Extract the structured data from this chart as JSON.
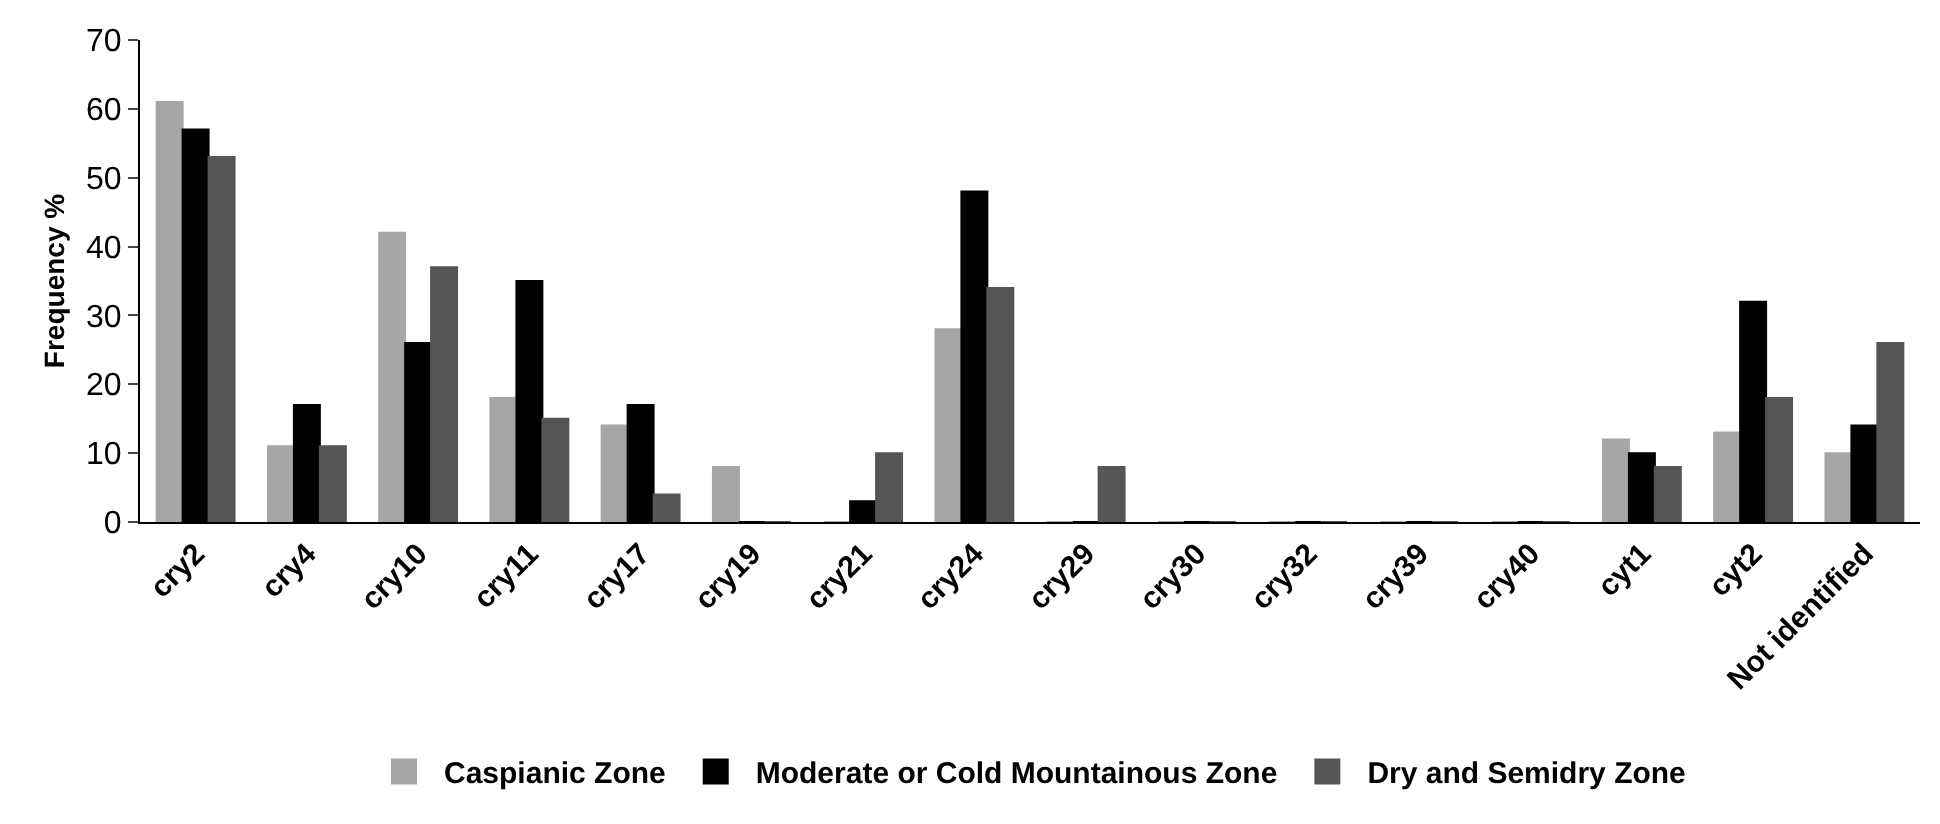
{
  "chart_data": {
    "type": "bar",
    "ylabel": "Frequency %",
    "categories": [
      "cry2",
      "cry4",
      "cry10",
      "cry11",
      "cry17",
      "cry19",
      "cry21",
      "cry24",
      "cry29",
      "cry30",
      "cry32",
      "cry39",
      "cry40",
      "cyt1",
      "cyt2",
      "Not identified"
    ],
    "series": [
      {
        "name": "Caspianic Zone",
        "color": "#a6a6a6",
        "values": [
          61,
          11,
          42,
          18,
          14,
          8,
          0,
          28,
          0,
          0,
          0,
          0,
          0,
          12,
          13,
          10
        ]
      },
      {
        "name": "Moderate or Cold Mountainous Zone",
        "color": "#000000",
        "values": [
          57,
          17,
          26,
          35,
          17,
          0,
          3,
          48,
          0,
          0,
          0,
          0,
          0,
          10,
          32,
          14
        ]
      },
      {
        "name": "Dry and Semidry Zone",
        "color": "#555555",
        "values": [
          53,
          11,
          37,
          15,
          4,
          0,
          10,
          34,
          8,
          0,
          0,
          0,
          0,
          8,
          18,
          26
        ]
      }
    ],
    "ylim": [
      0,
      70
    ],
    "yticks": [
      0,
      10,
      20,
      30,
      40,
      50,
      60,
      70
    ],
    "grid": false,
    "legend": "bottom"
  }
}
